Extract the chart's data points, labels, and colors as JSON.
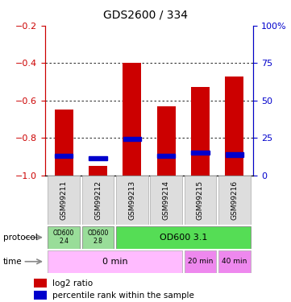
{
  "title": "GDS2600 / 334",
  "samples": [
    "GSM99211",
    "GSM99212",
    "GSM99213",
    "GSM99214",
    "GSM99215",
    "GSM99216"
  ],
  "log2_ratio_top": [
    -0.65,
    -0.95,
    -0.4,
    -0.63,
    -0.53,
    -0.47
  ],
  "log2_ratio_bottom": [
    -1.0,
    -1.0,
    -1.0,
    -1.0,
    -1.0,
    -1.0
  ],
  "percentile_rank": [
    -0.895,
    -0.91,
    -0.805,
    -0.895,
    -0.878,
    -0.89
  ],
  "ylim_left": [
    -1.0,
    -0.2
  ],
  "ylim_right": [
    0,
    100
  ],
  "yticks_left": [
    -1.0,
    -0.8,
    -0.6,
    -0.4,
    -0.2
  ],
  "yticks_right": [
    0,
    25,
    50,
    75,
    100
  ],
  "ytick_labels_right": [
    "0",
    "25",
    "50",
    "75",
    "100%"
  ],
  "bar_color": "#cc0000",
  "blue_color": "#0000cc",
  "left_axis_color": "#cc0000",
  "right_axis_color": "#0000cc",
  "grid_color": "#000000",
  "label_bg": "#dddddd",
  "label_edge": "#aaaaaa",
  "prot_color_light": "#99dd99",
  "prot_color_bright": "#55dd55",
  "time_color_light": "#ffbbff",
  "time_color_dark": "#ee88ee",
  "arrow_color": "#888888"
}
